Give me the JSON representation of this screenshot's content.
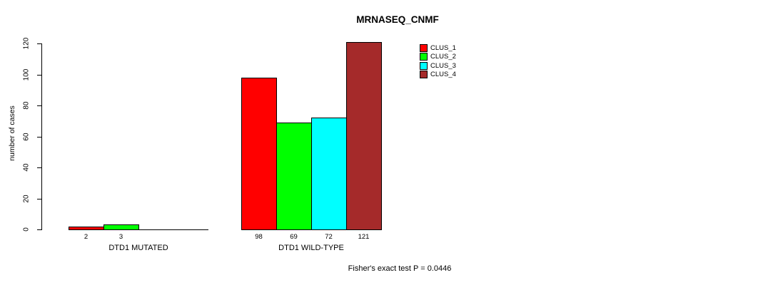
{
  "chart_data": {
    "type": "bar",
    "title": "MRNASEQ_CNMF",
    "ylabel": "number of cases",
    "xlabel": "",
    "footnote": "Fisher's exact test P = 0.0446",
    "ylim": [
      0,
      120
    ],
    "yticks": [
      0,
      20,
      40,
      60,
      80,
      100,
      120
    ],
    "grid": false,
    "legend_position": "top-right-inside",
    "categories": [
      "DTD1 MUTATED",
      "DTD1 WILD-TYPE"
    ],
    "series": [
      {
        "name": "CLUS_1",
        "color": "#ff0000",
        "values": [
          2,
          98
        ]
      },
      {
        "name": "CLUS_2",
        "color": "#00ff00",
        "values": [
          3,
          69
        ]
      },
      {
        "name": "CLUS_3",
        "color": "#00ffff",
        "values": [
          0,
          72
        ]
      },
      {
        "name": "CLUS_4",
        "color": "#a52a2a",
        "values": [
          0,
          121
        ]
      }
    ],
    "value_labels": [
      [
        "2",
        "3",
        null,
        null
      ],
      [
        "98",
        "69",
        "72",
        "121"
      ]
    ]
  }
}
